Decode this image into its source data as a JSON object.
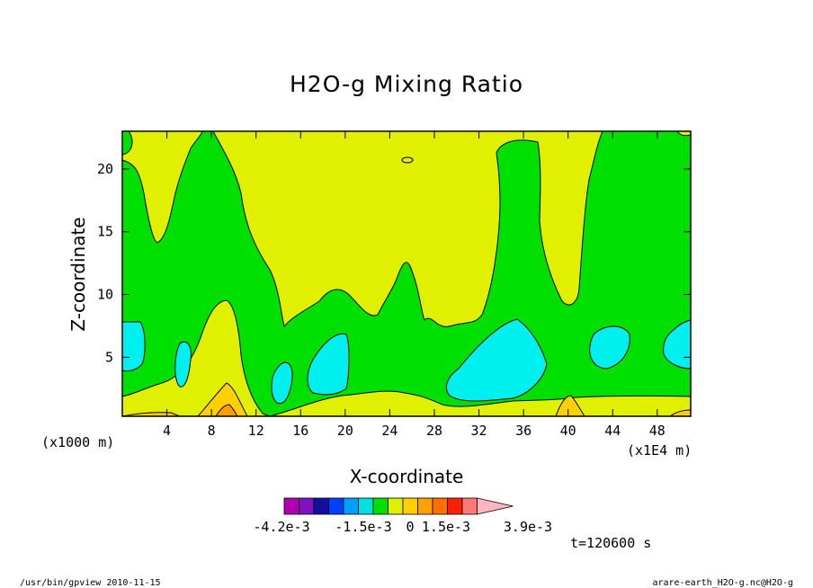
{
  "chart_data": {
    "type": "heatmap",
    "title": "H2O-g Mixing Ratio",
    "xlabel": "X-coordinate",
    "ylabel": "Z-coordinate",
    "x_unit_label": "(x1000 m)",
    "x_scale_label": "(x1E4 m)",
    "xlim": [
      0,
      51
    ],
    "ylim": [
      0.3,
      23
    ],
    "x_ticks": [
      4,
      8,
      12,
      16,
      20,
      24,
      28,
      32,
      36,
      40,
      44,
      48
    ],
    "y_ticks": [
      5,
      10,
      15,
      20
    ],
    "colorbar": {
      "colors": [
        "#b000b0",
        "#8010c0",
        "#1010a0",
        "#0040ff",
        "#00a0ff",
        "#00e0e0",
        "#00e000",
        "#e0f000",
        "#ffd000",
        "#ffa000",
        "#ff7000",
        "#ff2000",
        "#ff7878",
        "#ffb6c1"
      ],
      "labels": [
        "-4.2e-3",
        "-1.5e-3",
        "0",
        "1.5e-3",
        "3.9e-3"
      ]
    },
    "time_label": "t=120600 s"
  },
  "footer": {
    "left": "/usr/bin/gpview  2010-11-15",
    "right": "arare-earth_H2O-g.nc@H2O-g"
  }
}
